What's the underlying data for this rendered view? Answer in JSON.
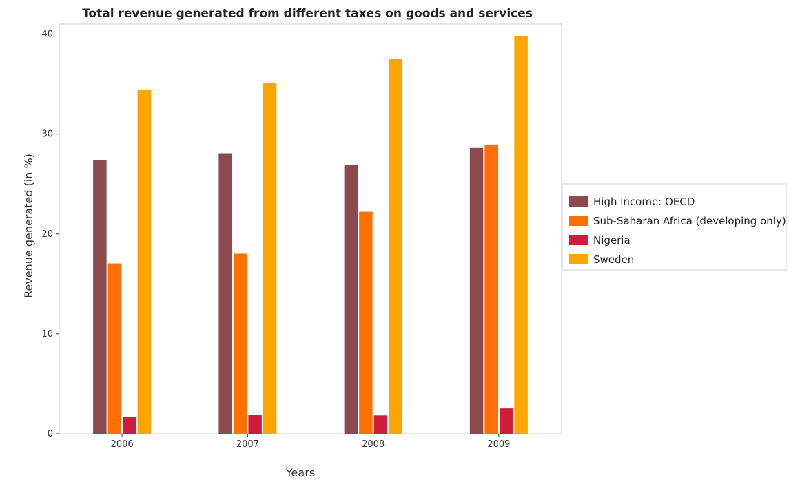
{
  "chart_data": {
    "type": "bar",
    "title": "Total revenue generated from different taxes on goods and services",
    "xlabel": "Years",
    "ylabel": "Revenue generated (in %)",
    "categories": [
      "2006",
      "2007",
      "2008",
      "2009"
    ],
    "ylim": [
      0,
      41
    ],
    "yticks": [
      0,
      10,
      20,
      30,
      40
    ],
    "grid": false,
    "legend_position": "right",
    "series": [
      {
        "name": "High income: OECD",
        "color": "#8c4a4e",
        "values": [
          27.38,
          28.08,
          26.88,
          28.61
        ]
      },
      {
        "name": "Sub-Saharan Africa (developing only)",
        "color": "#ff7000",
        "values": [
          17.05,
          18.02,
          22.22,
          28.95
        ]
      },
      {
        "name": "Nigeria",
        "color": "#d01c3c",
        "values": [
          1.72,
          1.87,
          1.84,
          2.54
        ]
      },
      {
        "name": "Sweden",
        "color": "#ffa500",
        "values": [
          34.44,
          35.08,
          37.51,
          39.83
        ]
      }
    ]
  }
}
